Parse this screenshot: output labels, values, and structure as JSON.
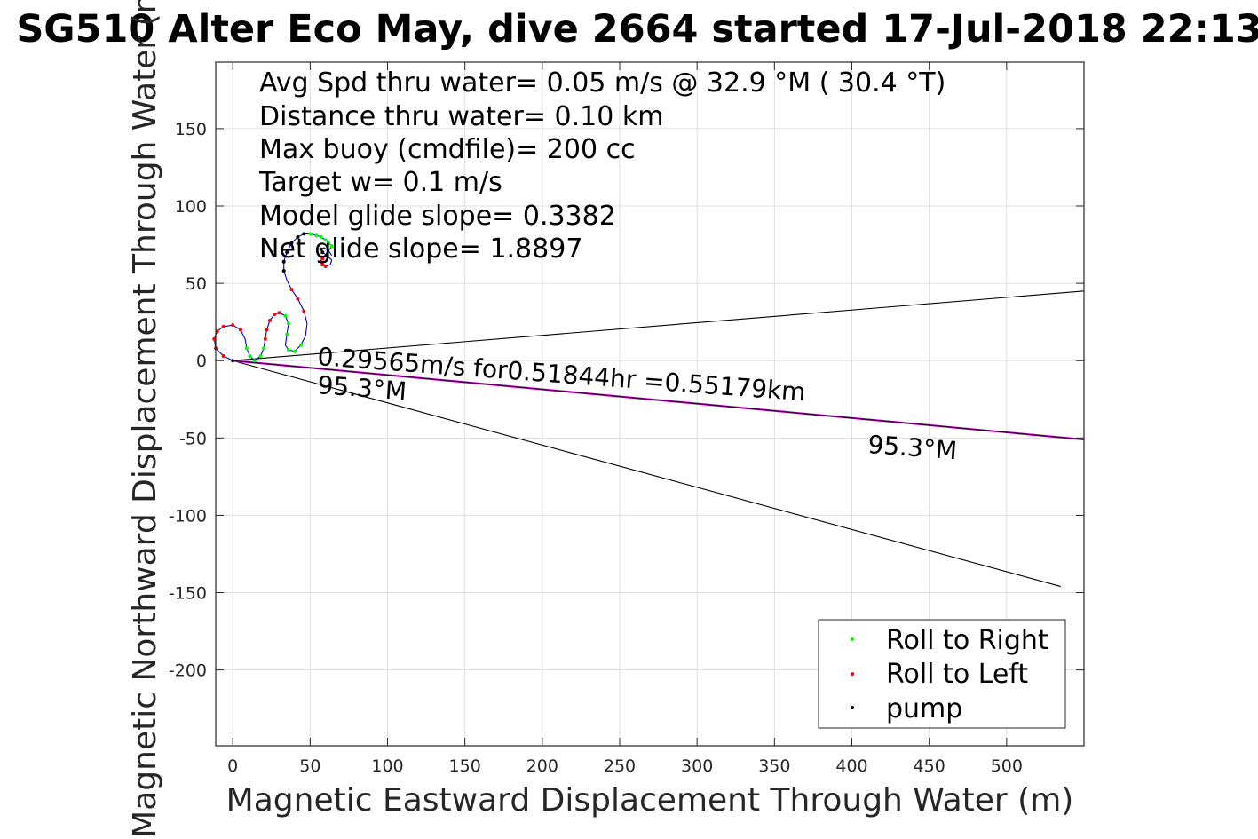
{
  "chart_data": {
    "type": "line",
    "title": "SG510 Alter Eco May, dive 2664 started 17-Jul-2018 22:13",
    "xlabel": "Magnetic Eastward Displacement Through Water (m)",
    "ylabel": "Magnetic Northward Displacement Through Water (m)",
    "xlim": [
      -11,
      550
    ],
    "ylim": [
      -249,
      193
    ],
    "xticks": [
      "0",
      "50",
      "100",
      "150",
      "200",
      "250",
      "300",
      "350",
      "400",
      "450",
      "500"
    ],
    "yticks": [
      "-200",
      "-150",
      "-100",
      "-50",
      "0",
      "50",
      "100",
      "150"
    ],
    "grid": true,
    "info_lines": [
      "Avg Spd thru water=  0.05 m/s @  32.9 °M ( 30.4 °T)",
      "Distance thru water=  0.10 km",
      "Max buoy (cmdfile)= 200 cc",
      "Target w= 0.1 m/s",
      "Model glide slope= 0.3382",
      "Net glide slope= 1.8897"
    ],
    "annotations": {
      "current_text": "0.29565m/s for0.51844hr =0.55179km",
      "heading_near": "95.3°M",
      "heading_far": "95.3°M"
    },
    "cone_lines": [
      {
        "x": [
          0,
          550
        ],
        "y": [
          0,
          45
        ]
      },
      {
        "x": [
          0,
          535
        ],
        "y": [
          0,
          -146
        ]
      }
    ],
    "current_vector": {
      "x": [
        0,
        550
      ],
      "y": [
        0,
        -51
      ]
    },
    "track": {
      "name": "glider track",
      "x": [
        0,
        -6,
        -11,
        -12,
        -10,
        -6,
        0,
        5,
        8,
        9,
        11,
        14,
        18,
        20,
        21,
        22,
        24,
        27,
        30,
        34,
        36,
        35,
        34,
        36,
        40,
        44,
        47,
        48,
        46,
        42,
        38,
        35,
        33,
        33,
        35,
        38,
        42,
        46,
        50,
        54,
        57,
        60,
        62,
        64,
        62,
        60,
        58,
        57,
        58,
        60,
        63,
        64,
        61,
        58,
        57,
        59,
        62,
        64
      ],
      "y": [
        0,
        3,
        8,
        14,
        19,
        22,
        23,
        20,
        14,
        8,
        3,
        0,
        3,
        8,
        14,
        20,
        26,
        30,
        31,
        29,
        24,
        17,
        10,
        7,
        6,
        10,
        16,
        24,
        32,
        40,
        46,
        52,
        58,
        64,
        70,
        76,
        80,
        82,
        82,
        81,
        80,
        78,
        76,
        74,
        71,
        68,
        66,
        64,
        62,
        61,
        62,
        65,
        68,
        70,
        72,
        73,
        71,
        68
      ]
    },
    "series": [
      {
        "name": "Roll to Right",
        "color": "#00ff00",
        "x": [
          9,
          11,
          14,
          18,
          20,
          34,
          36,
          35,
          36,
          40,
          44,
          50,
          54,
          57,
          60,
          62,
          64
        ],
        "y": [
          8,
          3,
          0,
          3,
          8,
          29,
          24,
          17,
          7,
          6,
          10,
          82,
          81,
          80,
          78,
          76,
          74
        ]
      },
      {
        "name": "Roll to Left",
        "color": "#ff0000",
        "x": [
          -6,
          -11,
          -12,
          -10,
          -6,
          0,
          5,
          21,
          22,
          24,
          27,
          30,
          46,
          42,
          38,
          58,
          57,
          58,
          60
        ],
        "y": [
          3,
          8,
          14,
          19,
          22,
          23,
          20,
          14,
          20,
          26,
          30,
          31,
          32,
          40,
          46,
          66,
          64,
          62,
          61
        ]
      },
      {
        "name": "pump",
        "color": "#000000",
        "x": [
          0,
          33,
          33,
          35,
          38,
          42,
          46,
          61,
          58,
          57
        ],
        "y": [
          0,
          58,
          64,
          70,
          76,
          80,
          82,
          68,
          70,
          72
        ]
      }
    ],
    "legend": {
      "position": "bottom-right",
      "entries": [
        "Roll to Right",
        "Roll to Left",
        "pump"
      ]
    },
    "colors": {
      "track": "#0000cc",
      "current": "#cc00cc",
      "cone": "#000000",
      "grid": "#dfdfdf"
    }
  }
}
